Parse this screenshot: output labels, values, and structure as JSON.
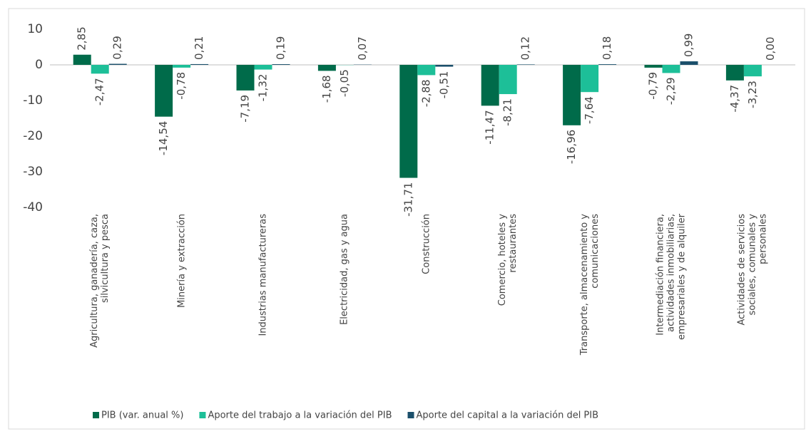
{
  "chart_data": {
    "type": "bar",
    "categories": [
      "Agricultura, ganadería, caza, silvicultura y pesca",
      "Minería y extracción",
      "Industrias manufactureras",
      "Electricidad, gas y agua",
      "Construcción",
      "Comercio, hoteles y restaurantes",
      "Transporte, almacenamiento y comunicaciones",
      "Intermediación financiera, actividades inmobiliarias, empresariales y de alquiler",
      "Actividades de servicios sociales, comunales y personales"
    ],
    "series": [
      {
        "name": "PIB (var. anual %)",
        "color": "#006b4a",
        "values": [
          2.85,
          -14.54,
          -7.19,
          -1.68,
          -31.71,
          -11.47,
          -16.96,
          -0.79,
          -4.37
        ],
        "value_labels": [
          "2,85",
          "-14,54",
          "-7,19",
          "-1,68",
          "-31,71",
          "-11,47",
          "-16,96",
          "-0,79",
          "-4,37"
        ]
      },
      {
        "name": "Aporte del trabajo a la variación del PIB",
        "color": "#1dbf98",
        "values": [
          -2.47,
          -0.78,
          -1.32,
          -0.05,
          -2.88,
          -8.21,
          -7.64,
          -2.29,
          -3.23
        ],
        "value_labels": [
          "-2,47",
          "-0,78",
          "-1,32",
          "-0,05",
          "-2,88",
          "-8,21",
          "-7,64",
          "-2,29",
          "-3,23"
        ]
      },
      {
        "name": "Aporte del capital a la variación del PIB",
        "color": "#1b4f6b",
        "values": [
          0.29,
          0.21,
          0.19,
          0.07,
          -0.51,
          0.12,
          0.18,
          0.99,
          0.0
        ],
        "value_labels": [
          "0,29",
          "0,21",
          "0,19",
          "0,07",
          "-0,51",
          "0,12",
          "0,18",
          "0,99",
          "0,00"
        ]
      }
    ],
    "ylim": [
      -40,
      10
    ],
    "yticks": [
      10,
      0,
      -10,
      -20,
      -30,
      -40
    ],
    "legend": "bottom"
  }
}
